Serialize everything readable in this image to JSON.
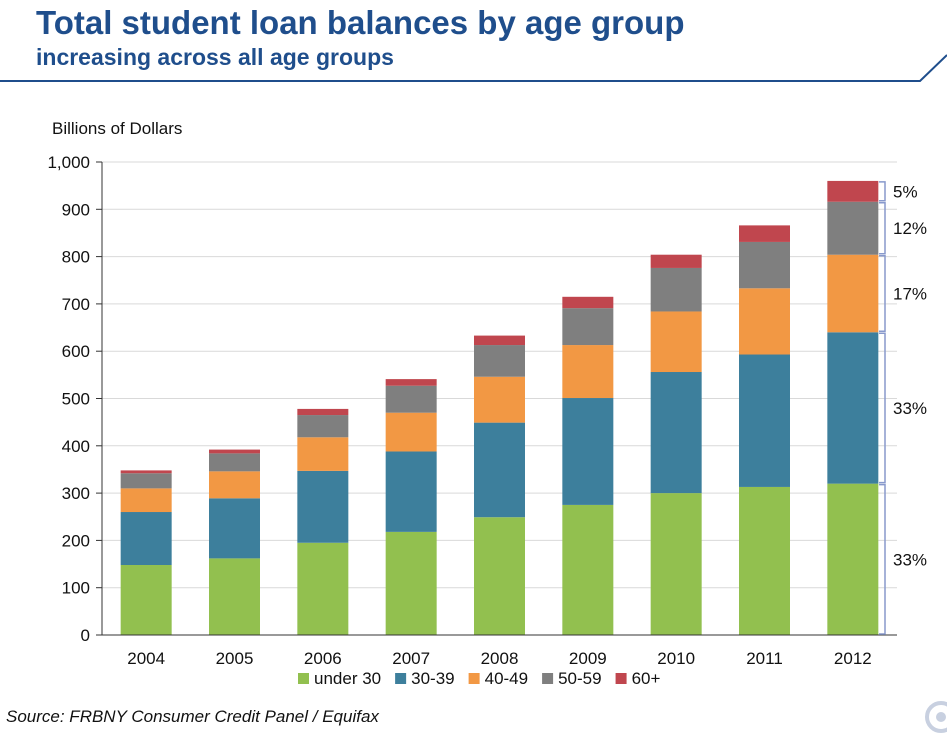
{
  "header": {
    "title": "Total student loan balances by age group",
    "subtitle": "increasing across all age groups"
  },
  "source": "Source: FRBNY Consumer Credit Panel / Equifax",
  "colors": {
    "brand_blue": "#1f4e8c",
    "under30": "#92c04f",
    "30_39": "#3d7f9c",
    "40_49": "#f29844",
    "50_59": "#7f7f7f",
    "60plus": "#c0464e",
    "bracket": "#8899cc"
  },
  "chart_data": {
    "type": "bar",
    "stacked": true,
    "title": "",
    "xlabel": "",
    "ylabel": "Billions of Dollars",
    "ylim": [
      0,
      1000
    ],
    "yticks": [
      0,
      100,
      200,
      300,
      400,
      500,
      600,
      700,
      800,
      900,
      1000
    ],
    "ytick_labels": [
      "0",
      "100",
      "200",
      "300",
      "400",
      "500",
      "600",
      "700",
      "800",
      "900",
      "1,000"
    ],
    "grid": "horizontal",
    "legend_position": "bottom",
    "categories": [
      "2004",
      "2005",
      "2006",
      "2007",
      "2008",
      "2009",
      "2010",
      "2011",
      "2012"
    ],
    "series": [
      {
        "name": "under 30",
        "color": "#92c04f",
        "values": [
          148,
          162,
          195,
          218,
          249,
          275,
          300,
          313,
          320
        ]
      },
      {
        "name": "30-39",
        "color": "#3d7f9c",
        "values": [
          112,
          127,
          152,
          170,
          200,
          226,
          256,
          280,
          320
        ]
      },
      {
        "name": "40-49",
        "color": "#f29844",
        "values": [
          50,
          57,
          71,
          82,
          97,
          112,
          128,
          140,
          164
        ]
      },
      {
        "name": "50-59",
        "color": "#7f7f7f",
        "values": [
          32,
          38,
          47,
          57,
          67,
          78,
          92,
          98,
          112
        ]
      },
      {
        "name": "60+",
        "color": "#c0464e",
        "values": [
          6,
          8,
          13,
          14,
          20,
          24,
          28,
          35,
          44
        ]
      }
    ],
    "annotations": [
      {
        "series": "60+",
        "label": "5%"
      },
      {
        "series": "50-59",
        "label": "12%"
      },
      {
        "series": "40-49",
        "label": "17%"
      },
      {
        "series": "30-39",
        "label": "33%"
      },
      {
        "series": "under 30",
        "label": "33%"
      }
    ]
  }
}
